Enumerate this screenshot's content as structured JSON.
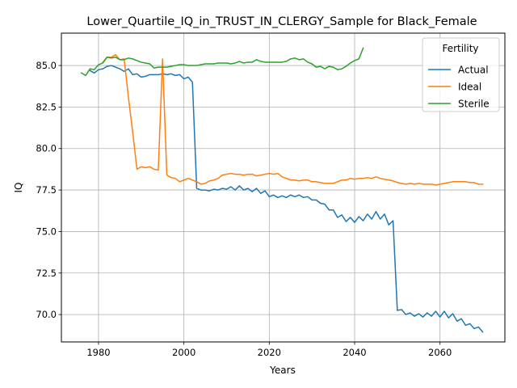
{
  "chart_data": {
    "type": "line",
    "title": "Lower_Quartile_IQ_in_TRUST_IN_CLERGY_Sample for Black_Female",
    "xlabel": "Years",
    "ylabel": "IQ",
    "xlim": [
      1971.3,
      2075.2
    ],
    "ylim": [
      68.35,
      86.95
    ],
    "xticks": [
      1980,
      2000,
      2020,
      2040,
      2060
    ],
    "xtick_labels": [
      "1980",
      "2000",
      "2020",
      "2040",
      "2060"
    ],
    "yticks": [
      70.0,
      72.5,
      75.0,
      77.5,
      80.0,
      82.5,
      85.0
    ],
    "ytick_labels": [
      "70.0",
      "72.5",
      "75.0",
      "77.5",
      "80.0",
      "82.5",
      "85.0"
    ],
    "grid": true,
    "legend": {
      "title": "Fertility",
      "placement": "upper right"
    },
    "series": [
      {
        "name": "Actual",
        "color": "#1f77b4",
        "x": [
          1978,
          1979,
          1980,
          1981,
          1982,
          1983,
          1984,
          1985,
          1986,
          1987,
          1988,
          1989,
          1990,
          1991,
          1992,
          1993,
          1994,
          1995,
          1996,
          1997,
          1998,
          1999,
          2000,
          2001,
          2002,
          2003,
          2004,
          2005,
          2006,
          2007,
          2008,
          2009,
          2010,
          2011,
          2012,
          2013,
          2014,
          2015,
          2016,
          2017,
          2018,
          2019,
          2020,
          2021,
          2022,
          2023,
          2024,
          2025,
          2026,
          2027,
          2028,
          2029,
          2030,
          2031,
          2032,
          2033,
          2034,
          2035,
          2036,
          2037,
          2038,
          2039,
          2040,
          2041,
          2042,
          2043,
          2044,
          2045,
          2046,
          2047,
          2048,
          2049,
          2050,
          2051,
          2052,
          2053,
          2054,
          2055,
          2056,
          2057,
          2058,
          2059,
          2060,
          2061,
          2062,
          2063,
          2064,
          2065,
          2066,
          2067,
          2068,
          2069,
          2070
        ],
        "y": [
          84.7,
          84.55,
          84.75,
          84.8,
          84.95,
          85.0,
          84.9,
          84.8,
          84.65,
          84.8,
          84.45,
          84.5,
          84.3,
          84.35,
          84.45,
          84.45,
          84.45,
          84.5,
          84.45,
          84.5,
          84.4,
          84.45,
          84.2,
          84.3,
          84.0,
          77.6,
          77.5,
          77.5,
          77.45,
          77.55,
          77.5,
          77.6,
          77.55,
          77.7,
          77.5,
          77.75,
          77.5,
          77.6,
          77.4,
          77.6,
          77.3,
          77.45,
          77.1,
          77.2,
          77.05,
          77.15,
          77.05,
          77.2,
          77.1,
          77.2,
          77.05,
          77.1,
          76.9,
          76.9,
          76.7,
          76.65,
          76.3,
          76.3,
          75.85,
          76.0,
          75.6,
          75.85,
          75.55,
          75.9,
          75.65,
          76.05,
          75.75,
          76.2,
          75.75,
          76.05,
          75.4,
          75.65,
          70.25,
          70.3,
          70.0,
          70.1,
          69.9,
          70.05,
          69.85,
          70.1,
          69.9,
          70.2,
          69.85,
          70.2,
          69.8,
          70.05,
          69.6,
          69.75,
          69.35,
          69.45,
          69.15,
          69.25,
          68.95
        ]
      },
      {
        "name": "Ideal",
        "color": "#ff7f0e",
        "x": [
          1981,
          1982,
          1983,
          1984,
          1985,
          1986,
          1987,
          1988,
          1989,
          1990,
          1991,
          1992,
          1993,
          1994,
          1995,
          1996,
          1997,
          1998,
          1999,
          2000,
          2001,
          2002,
          2003,
          2004,
          2005,
          2006,
          2007,
          2008,
          2009,
          2010,
          2011,
          2012,
          2013,
          2014,
          2015,
          2016,
          2017,
          2018,
          2019,
          2020,
          2021,
          2022,
          2023,
          2024,
          2025,
          2026,
          2027,
          2028,
          2029,
          2030,
          2031,
          2032,
          2033,
          2034,
          2035,
          2036,
          2037,
          2038,
          2039,
          2040,
          2041,
          2042,
          2043,
          2044,
          2045,
          2046,
          2047,
          2048,
          2049,
          2050,
          2051,
          2052,
          2053,
          2054,
          2055,
          2056,
          2057,
          2058,
          2059,
          2060,
          2061,
          2062,
          2063,
          2064,
          2065,
          2066,
          2067,
          2068,
          2069,
          2070
        ],
        "y": [
          85.2,
          85.5,
          85.5,
          85.65,
          85.35,
          85.4,
          83.1,
          81.0,
          78.75,
          78.9,
          78.85,
          78.9,
          78.75,
          78.7,
          85.4,
          78.4,
          78.25,
          78.2,
          78.0,
          78.1,
          78.2,
          78.1,
          78.0,
          77.85,
          77.9,
          78.05,
          78.1,
          78.2,
          78.4,
          78.45,
          78.5,
          78.45,
          78.45,
          78.4,
          78.45,
          78.45,
          78.35,
          78.4,
          78.45,
          78.5,
          78.45,
          78.5,
          78.3,
          78.2,
          78.1,
          78.1,
          78.05,
          78.1,
          78.1,
          78.0,
          78.0,
          77.95,
          77.9,
          77.9,
          77.9,
          78.0,
          78.1,
          78.1,
          78.2,
          78.15,
          78.2,
          78.2,
          78.25,
          78.2,
          78.3,
          78.2,
          78.15,
          78.1,
          78.05,
          77.95,
          77.9,
          77.85,
          77.9,
          77.85,
          77.9,
          77.85,
          77.85,
          77.85,
          77.8,
          77.85,
          77.9,
          77.95,
          78.0,
          78.0,
          78.0,
          78.0,
          77.95,
          77.95,
          77.85,
          77.85
        ]
      },
      {
        "name": "Sterile",
        "color": "#2ca02c",
        "x": [
          1976,
          1977,
          1978,
          1979,
          1980,
          1981,
          1982,
          1983,
          1984,
          1985,
          1986,
          1987,
          1988,
          1989,
          1990,
          1991,
          1992,
          1993,
          1994,
          1995,
          1996,
          1997,
          1998,
          1999,
          2000,
          2001,
          2002,
          2003,
          2004,
          2005,
          2006,
          2007,
          2008,
          2009,
          2010,
          2011,
          2012,
          2013,
          2014,
          2015,
          2016,
          2017,
          2018,
          2019,
          2020,
          2021,
          2022,
          2023,
          2024,
          2025,
          2026,
          2027,
          2028,
          2029,
          2030,
          2031,
          2032,
          2033,
          2034,
          2035,
          2036,
          2037,
          2038,
          2039,
          2040,
          2041,
          2042
        ],
        "y": [
          84.55,
          84.4,
          84.8,
          84.75,
          85.05,
          85.15,
          85.5,
          85.45,
          85.5,
          85.35,
          85.35,
          85.45,
          85.4,
          85.3,
          85.2,
          85.15,
          85.1,
          84.85,
          84.9,
          84.9,
          84.9,
          84.95,
          85.0,
          85.05,
          85.05,
          85.0,
          85.0,
          85.0,
          85.05,
          85.1,
          85.1,
          85.1,
          85.15,
          85.15,
          85.15,
          85.1,
          85.15,
          85.25,
          85.15,
          85.2,
          85.2,
          85.35,
          85.25,
          85.2,
          85.2,
          85.2,
          85.2,
          85.2,
          85.25,
          85.4,
          85.45,
          85.35,
          85.4,
          85.2,
          85.1,
          84.9,
          84.95,
          84.8,
          84.95,
          84.9,
          84.75,
          84.8,
          84.95,
          85.15,
          85.3,
          85.4,
          86.05
        ]
      }
    ]
  }
}
